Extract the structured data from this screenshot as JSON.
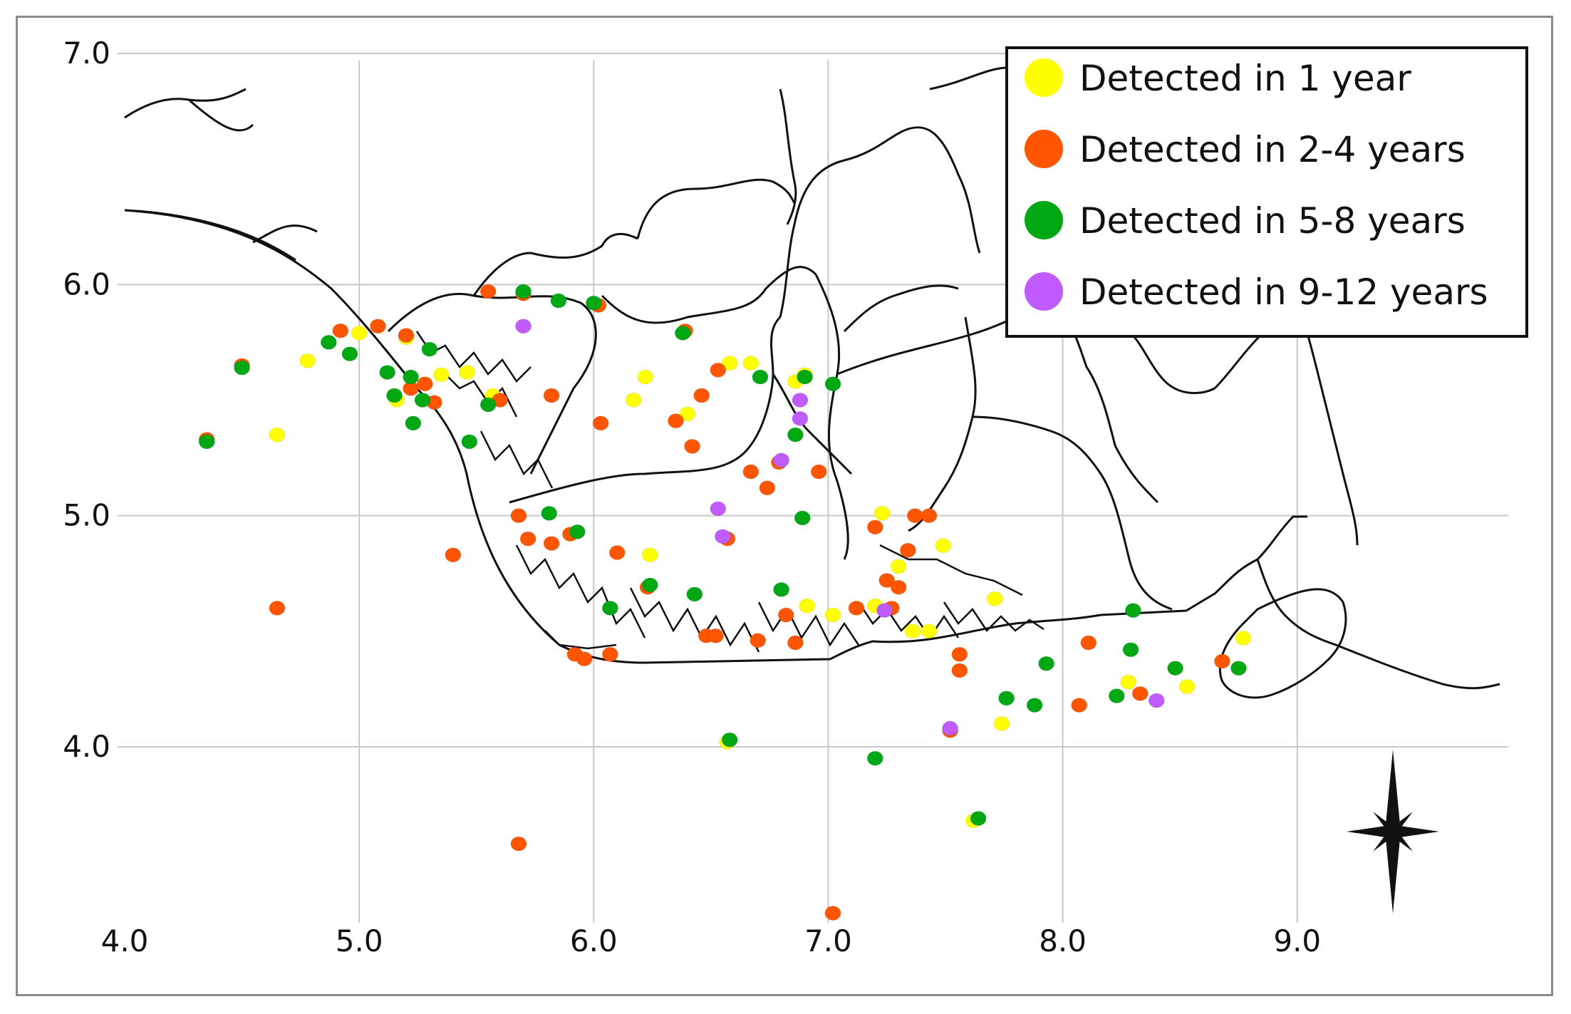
{
  "chart_data": {
    "type": "scatter",
    "xlim": [
      4.0,
      9.9
    ],
    "ylim": [
      3.3,
      7.0
    ],
    "x_ticks": [
      "4.0",
      "5.0",
      "6.0",
      "7.0",
      "8.0",
      "9.0"
    ],
    "y_ticks": [
      "4.0",
      "5.0",
      "6.0",
      "7.0"
    ],
    "grid": true,
    "legend_position": "top-right",
    "series": [
      {
        "name": "Detected in 1 year",
        "color": "#ffff00",
        "points": [
          [
            4.65,
            5.35
          ],
          [
            4.78,
            5.67
          ],
          [
            5.0,
            5.79
          ],
          [
            5.16,
            5.5
          ],
          [
            5.2,
            5.77
          ],
          [
            5.35,
            5.61
          ],
          [
            5.46,
            5.62
          ],
          [
            5.57,
            5.52
          ],
          [
            6.17,
            5.5
          ],
          [
            6.22,
            5.6
          ],
          [
            6.24,
            4.83
          ],
          [
            6.4,
            5.44
          ],
          [
            6.58,
            5.66
          ],
          [
            6.67,
            5.66
          ],
          [
            6.86,
            5.58
          ],
          [
            6.9,
            5.61
          ],
          [
            6.91,
            4.61
          ],
          [
            7.02,
            4.57
          ],
          [
            7.23,
            5.01
          ],
          [
            7.3,
            4.78
          ],
          [
            7.36,
            4.5
          ],
          [
            7.43,
            4.5
          ],
          [
            7.49,
            4.87
          ],
          [
            7.71,
            4.64
          ],
          [
            7.74,
            4.1
          ],
          [
            7.62,
            3.68
          ],
          [
            8.28,
            4.28
          ],
          [
            8.53,
            4.26
          ],
          [
            8.77,
            4.47
          ],
          [
            6.57,
            4.02
          ],
          [
            7.2,
            4.61
          ]
        ]
      },
      {
        "name": "Detected in 2-4 years",
        "color": "#ff5500",
        "points": [
          [
            4.35,
            5.33
          ],
          [
            4.5,
            5.65
          ],
          [
            4.65,
            4.6
          ],
          [
            4.92,
            5.8
          ],
          [
            5.08,
            5.82
          ],
          [
            5.2,
            5.78
          ],
          [
            5.22,
            5.55
          ],
          [
            5.28,
            5.57
          ],
          [
            5.32,
            5.49
          ],
          [
            5.55,
            5.97
          ],
          [
            5.6,
            5.5
          ],
          [
            5.68,
            5.0
          ],
          [
            5.72,
            4.9
          ],
          [
            5.82,
            4.88
          ],
          [
            5.82,
            5.52
          ],
          [
            5.9,
            4.92
          ],
          [
            5.92,
            4.4
          ],
          [
            5.96,
            4.38
          ],
          [
            6.02,
            5.91
          ],
          [
            6.03,
            5.4
          ],
          [
            6.07,
            4.4
          ],
          [
            6.1,
            4.84
          ],
          [
            6.23,
            4.69
          ],
          [
            6.35,
            5.41
          ],
          [
            6.39,
            5.8
          ],
          [
            6.42,
            5.3
          ],
          [
            6.46,
            5.52
          ],
          [
            6.48,
            4.48
          ],
          [
            6.52,
            4.48
          ],
          [
            6.53,
            5.63
          ],
          [
            6.57,
            4.9
          ],
          [
            6.67,
            5.19
          ],
          [
            6.7,
            4.46
          ],
          [
            6.74,
            5.12
          ],
          [
            6.79,
            5.23
          ],
          [
            6.82,
            4.57
          ],
          [
            6.86,
            4.45
          ],
          [
            6.96,
            5.19
          ],
          [
            7.12,
            4.6
          ],
          [
            7.2,
            4.95
          ],
          [
            7.25,
            4.72
          ],
          [
            7.27,
            4.6
          ],
          [
            7.3,
            4.69
          ],
          [
            7.34,
            4.85
          ],
          [
            7.37,
            5.0
          ],
          [
            7.43,
            5.0
          ],
          [
            7.52,
            4.07
          ],
          [
            7.56,
            4.4
          ],
          [
            7.56,
            4.33
          ],
          [
            8.07,
            4.18
          ],
          [
            8.11,
            4.45
          ],
          [
            8.33,
            4.23
          ],
          [
            8.68,
            4.37
          ],
          [
            5.68,
            3.58
          ],
          [
            7.02,
            3.28
          ],
          [
            5.4,
            4.83
          ],
          [
            5.7,
            5.96
          ]
        ]
      },
      {
        "name": "Detected in 5-8 years",
        "color": "#00a814",
        "points": [
          [
            4.35,
            5.32
          ],
          [
            4.5,
            5.64
          ],
          [
            4.87,
            5.75
          ],
          [
            4.96,
            5.7
          ],
          [
            5.12,
            5.62
          ],
          [
            5.15,
            5.52
          ],
          [
            5.22,
            5.6
          ],
          [
            5.23,
            5.4
          ],
          [
            5.27,
            5.5
          ],
          [
            5.3,
            5.72
          ],
          [
            5.47,
            5.32
          ],
          [
            5.55,
            5.48
          ],
          [
            5.7,
            5.97
          ],
          [
            5.81,
            5.01
          ],
          [
            5.85,
            5.93
          ],
          [
            6.0,
            5.92
          ],
          [
            6.07,
            4.6
          ],
          [
            6.24,
            4.7
          ],
          [
            6.38,
            5.79
          ],
          [
            6.43,
            4.66
          ],
          [
            6.71,
            5.6
          ],
          [
            6.8,
            4.68
          ],
          [
            6.86,
            5.35
          ],
          [
            6.89,
            4.99
          ],
          [
            6.9,
            5.6
          ],
          [
            7.02,
            5.57
          ],
          [
            7.2,
            3.95
          ],
          [
            7.64,
            3.69
          ],
          [
            7.76,
            4.21
          ],
          [
            7.88,
            4.18
          ],
          [
            7.93,
            4.36
          ],
          [
            8.23,
            4.22
          ],
          [
            8.29,
            4.42
          ],
          [
            8.3,
            4.59
          ],
          [
            8.48,
            4.34
          ],
          [
            8.75,
            4.34
          ],
          [
            6.58,
            4.03
          ],
          [
            5.93,
            4.93
          ]
        ]
      },
      {
        "name": "Detected in 9-12 years",
        "color": "#c05cff",
        "points": [
          [
            5.7,
            5.82
          ],
          [
            6.53,
            5.03
          ],
          [
            6.88,
            5.5
          ],
          [
            6.88,
            5.42
          ],
          [
            6.8,
            5.24
          ],
          [
            7.24,
            4.59
          ],
          [
            8.4,
            4.2
          ],
          [
            7.52,
            4.08
          ],
          [
            6.55,
            4.91
          ]
        ]
      }
    ]
  }
}
